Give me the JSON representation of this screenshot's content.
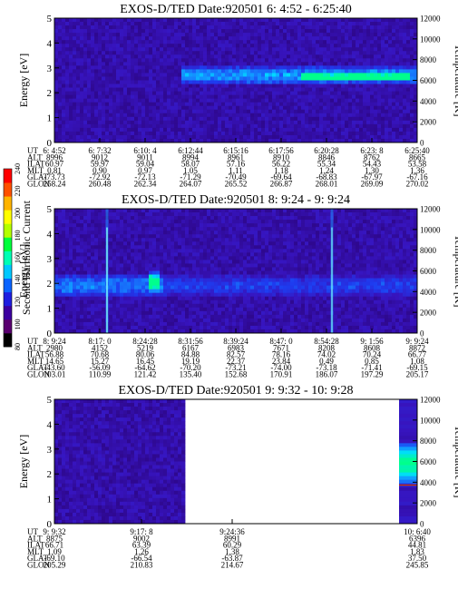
{
  "chart_data": [
    {
      "type": "heatmap",
      "title": "EXOS-D/TED   Date:920501   6: 4:52 - 6:25:40",
      "ylabel": "Energy [eV]",
      "y2label": "Temperature [K]",
      "ylim": [
        0,
        5
      ],
      "y2lim": [
        0,
        12000
      ],
      "yticks": [
        "0",
        "1",
        "2",
        "3",
        "4",
        "5"
      ],
      "y2ticks": [
        "0",
        "2000",
        "4000",
        "6000",
        "8000",
        "10000",
        "12000"
      ],
      "data_fraction": 1.0,
      "features": [
        {
          "kind": "band",
          "t_from": 0.35,
          "t_to": 1.0,
          "e_center": 2.7,
          "e_width": 0.8,
          "strength": 0.6
        },
        {
          "kind": "band",
          "t_from": 0.68,
          "t_to": 0.98,
          "e_center": 2.6,
          "e_width": 0.35,
          "strength": 0.95
        }
      ],
      "table": {
        "row_labels": [
          "UT",
          "ALT",
          "ILAT",
          "MLT",
          "GLAT",
          "GLON"
        ],
        "columns": [
          [
            "6: 4:52",
            "8996",
            "60.97",
            "0.81",
            "-73.73",
            "258.24"
          ],
          [
            "6: 7:32",
            "9012",
            "59.97",
            "0.90",
            "-72.92",
            "260.48"
          ],
          [
            "6:10: 4",
            "9011",
            "59.04",
            "0.97",
            "-72.13",
            "262.34"
          ],
          [
            "6:12:44",
            "8994",
            "58.07",
            "1.05",
            "-71.29",
            "264.07"
          ],
          [
            "6:15:16",
            "8961",
            "57.16",
            "1.11",
            "-70.49",
            "265.52"
          ],
          [
            "6:17:56",
            "8910",
            "56.22",
            "1.18",
            "-69.64",
            "266.87"
          ],
          [
            "6:20:28",
            "8846",
            "55.34",
            "1.24",
            "-68.83",
            "268.01"
          ],
          [
            "6:23: 8",
            "8762",
            "54.43",
            "1.30",
            "-67.97",
            "269.09"
          ],
          [
            "6:25:40",
            "8665",
            "53.58",
            "1.36",
            "-67.16",
            "270.02"
          ]
        ]
      }
    },
    {
      "type": "heatmap",
      "title": "EXOS-D/TED   Date:920501   8: 9:24 - 9: 9:24",
      "ylabel": "Energy [eV]",
      "y2label": "Temperature [K]",
      "ylim": [
        0,
        5
      ],
      "y2lim": [
        0,
        12000
      ],
      "yticks": [
        "0",
        "1",
        "2",
        "3",
        "4",
        "5"
      ],
      "y2ticks": [
        "0",
        "2000",
        "4000",
        "6000",
        "8000",
        "10000",
        "12000"
      ],
      "data_fraction": 1.0,
      "features": [
        {
          "kind": "band",
          "t_from": 0.0,
          "t_to": 0.3,
          "e_center": 1.9,
          "e_width": 1.0,
          "strength": 0.5
        },
        {
          "kind": "band",
          "t_from": 0.3,
          "t_to": 1.0,
          "e_center": 1.9,
          "e_width": 0.9,
          "strength": 0.3
        },
        {
          "kind": "spike",
          "t": 0.145,
          "strength": 1.0
        },
        {
          "kind": "spike",
          "t": 0.765,
          "strength": 0.8
        },
        {
          "kind": "blob",
          "t": 0.27,
          "e": 2.1,
          "strength": 0.8
        }
      ],
      "table": {
        "row_labels": [
          "UT",
          "ALT",
          "ILAT",
          "MLT",
          "GLAT",
          "GLON"
        ],
        "columns": [
          [
            "8: 9:24",
            "2980",
            "56.88",
            "14.65",
            "-43.60",
            "103.01"
          ],
          [
            "8:17: 0",
            "4152",
            "70.68",
            "15.27",
            "-56.09",
            "110.99"
          ],
          [
            "8:24:28",
            "5219",
            "80.06",
            "16.45",
            "-64.62",
            "121.42"
          ],
          [
            "8:31:56",
            "6167",
            "84.88",
            "19.19",
            "-70.20",
            "135.40"
          ],
          [
            "8:39:24",
            "6983",
            "82.57",
            "22.37",
            "-73.21",
            "152.68"
          ],
          [
            "8:47: 0",
            "7671",
            "78.16",
            "23.84",
            "-74.00",
            "170.91"
          ],
          [
            "8:54:28",
            "8208",
            "74.02",
            "0.49",
            "-73.18",
            "186.07"
          ],
          [
            "9: 1:56",
            "8608",
            "70.24",
            "0.85",
            "-71.41",
            "197.29"
          ],
          [
            "9: 9:24",
            "8872",
            "66.77",
            "1.08",
            "-69.15",
            "205.17"
          ]
        ]
      }
    },
    {
      "type": "heatmap",
      "title": "EXOS-D/TED   Date:920501   9: 9:32 - 10: 9:28",
      "ylabel": "Energy [eV]",
      "y2label": "Temperature [K]",
      "ylim": [
        0,
        5
      ],
      "y2lim": [
        0,
        12000
      ],
      "yticks": [
        "0",
        "1",
        "2",
        "3",
        "4",
        "5"
      ],
      "y2ticks": [
        "0",
        "2000",
        "4000",
        "6000",
        "8000",
        "10000",
        "12000"
      ],
      "data_fraction": 0.36,
      "temperature_panel": true,
      "features": [],
      "table": {
        "row_labels": [
          "UT",
          "ALT",
          "ILAT",
          "MLT",
          "GLAT",
          "GLON"
        ],
        "columns": [
          [
            "9: 9:32",
            "8875",
            "66.71",
            "1.09",
            "-69.10",
            "205.29"
          ],
          [
            "9:17: 8",
            "9002",
            "63.39",
            "1.26",
            "-66.54",
            "210.83"
          ],
          [
            "9:24:36",
            "8991",
            "60.29",
            "1.38",
            "-63.87",
            "214.67"
          ],
          [
            "10: 6:40",
            "6396",
            "44.81",
            "1.83",
            "37.50",
            "245.85"
          ]
        ]
      }
    }
  ],
  "colorbar": {
    "label": "Second Harmonic Current",
    "ticks": [
      "80",
      "100",
      "120",
      "140",
      "160",
      "180",
      "200",
      "220",
      "240"
    ],
    "colors": [
      "#000000",
      "#5a0070",
      "#3c00a0",
      "#1e1ee0",
      "#0a64ff",
      "#00c8ff",
      "#00ffb4",
      "#00ff3c",
      "#b4ff00",
      "#ffff00",
      "#ffb400",
      "#ff5000",
      "#ff0000"
    ]
  }
}
